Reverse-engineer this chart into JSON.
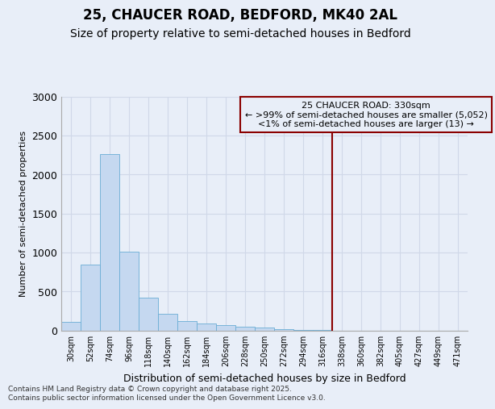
{
  "title_line1": "25, CHAUCER ROAD, BEDFORD, MK40 2AL",
  "title_line2": "Size of property relative to semi-detached houses in Bedford",
  "xlabel": "Distribution of semi-detached houses by size in Bedford",
  "ylabel": "Number of semi-detached properties",
  "bin_labels": [
    "30sqm",
    "52sqm",
    "74sqm",
    "96sqm",
    "118sqm",
    "140sqm",
    "162sqm",
    "184sqm",
    "206sqm",
    "228sqm",
    "250sqm",
    "272sqm",
    "294sqm",
    "316sqm",
    "338sqm",
    "360sqm",
    "382sqm",
    "405sqm",
    "427sqm",
    "449sqm",
    "471sqm"
  ],
  "bar_values": [
    110,
    840,
    2260,
    1010,
    415,
    215,
    115,
    85,
    65,
    45,
    35,
    15,
    10,
    5,
    0,
    0,
    0,
    0,
    0,
    0,
    0
  ],
  "bar_color": "#c5d8f0",
  "bar_edge_color": "#6aadd5",
  "vline_pos": 13.5,
  "vline_color": "#8b0000",
  "annotation_title": "25 CHAUCER ROAD: 330sqm",
  "annotation_line1": "← >99% of semi-detached houses are smaller (5,052)",
  "annotation_line2": "<1% of semi-detached houses are larger (13) →",
  "annotation_box_color": "#8b0000",
  "ylim": [
    0,
    3000
  ],
  "yticks": [
    0,
    500,
    1000,
    1500,
    2000,
    2500,
    3000
  ],
  "footer_line1": "Contains HM Land Registry data © Crown copyright and database right 2025.",
  "footer_line2": "Contains public sector information licensed under the Open Government Licence v3.0.",
  "bg_color": "#e8eef8",
  "grid_color": "#d0d8e8",
  "title_fontsize": 12,
  "subtitle_fontsize": 10,
  "ann_fontsize": 8
}
